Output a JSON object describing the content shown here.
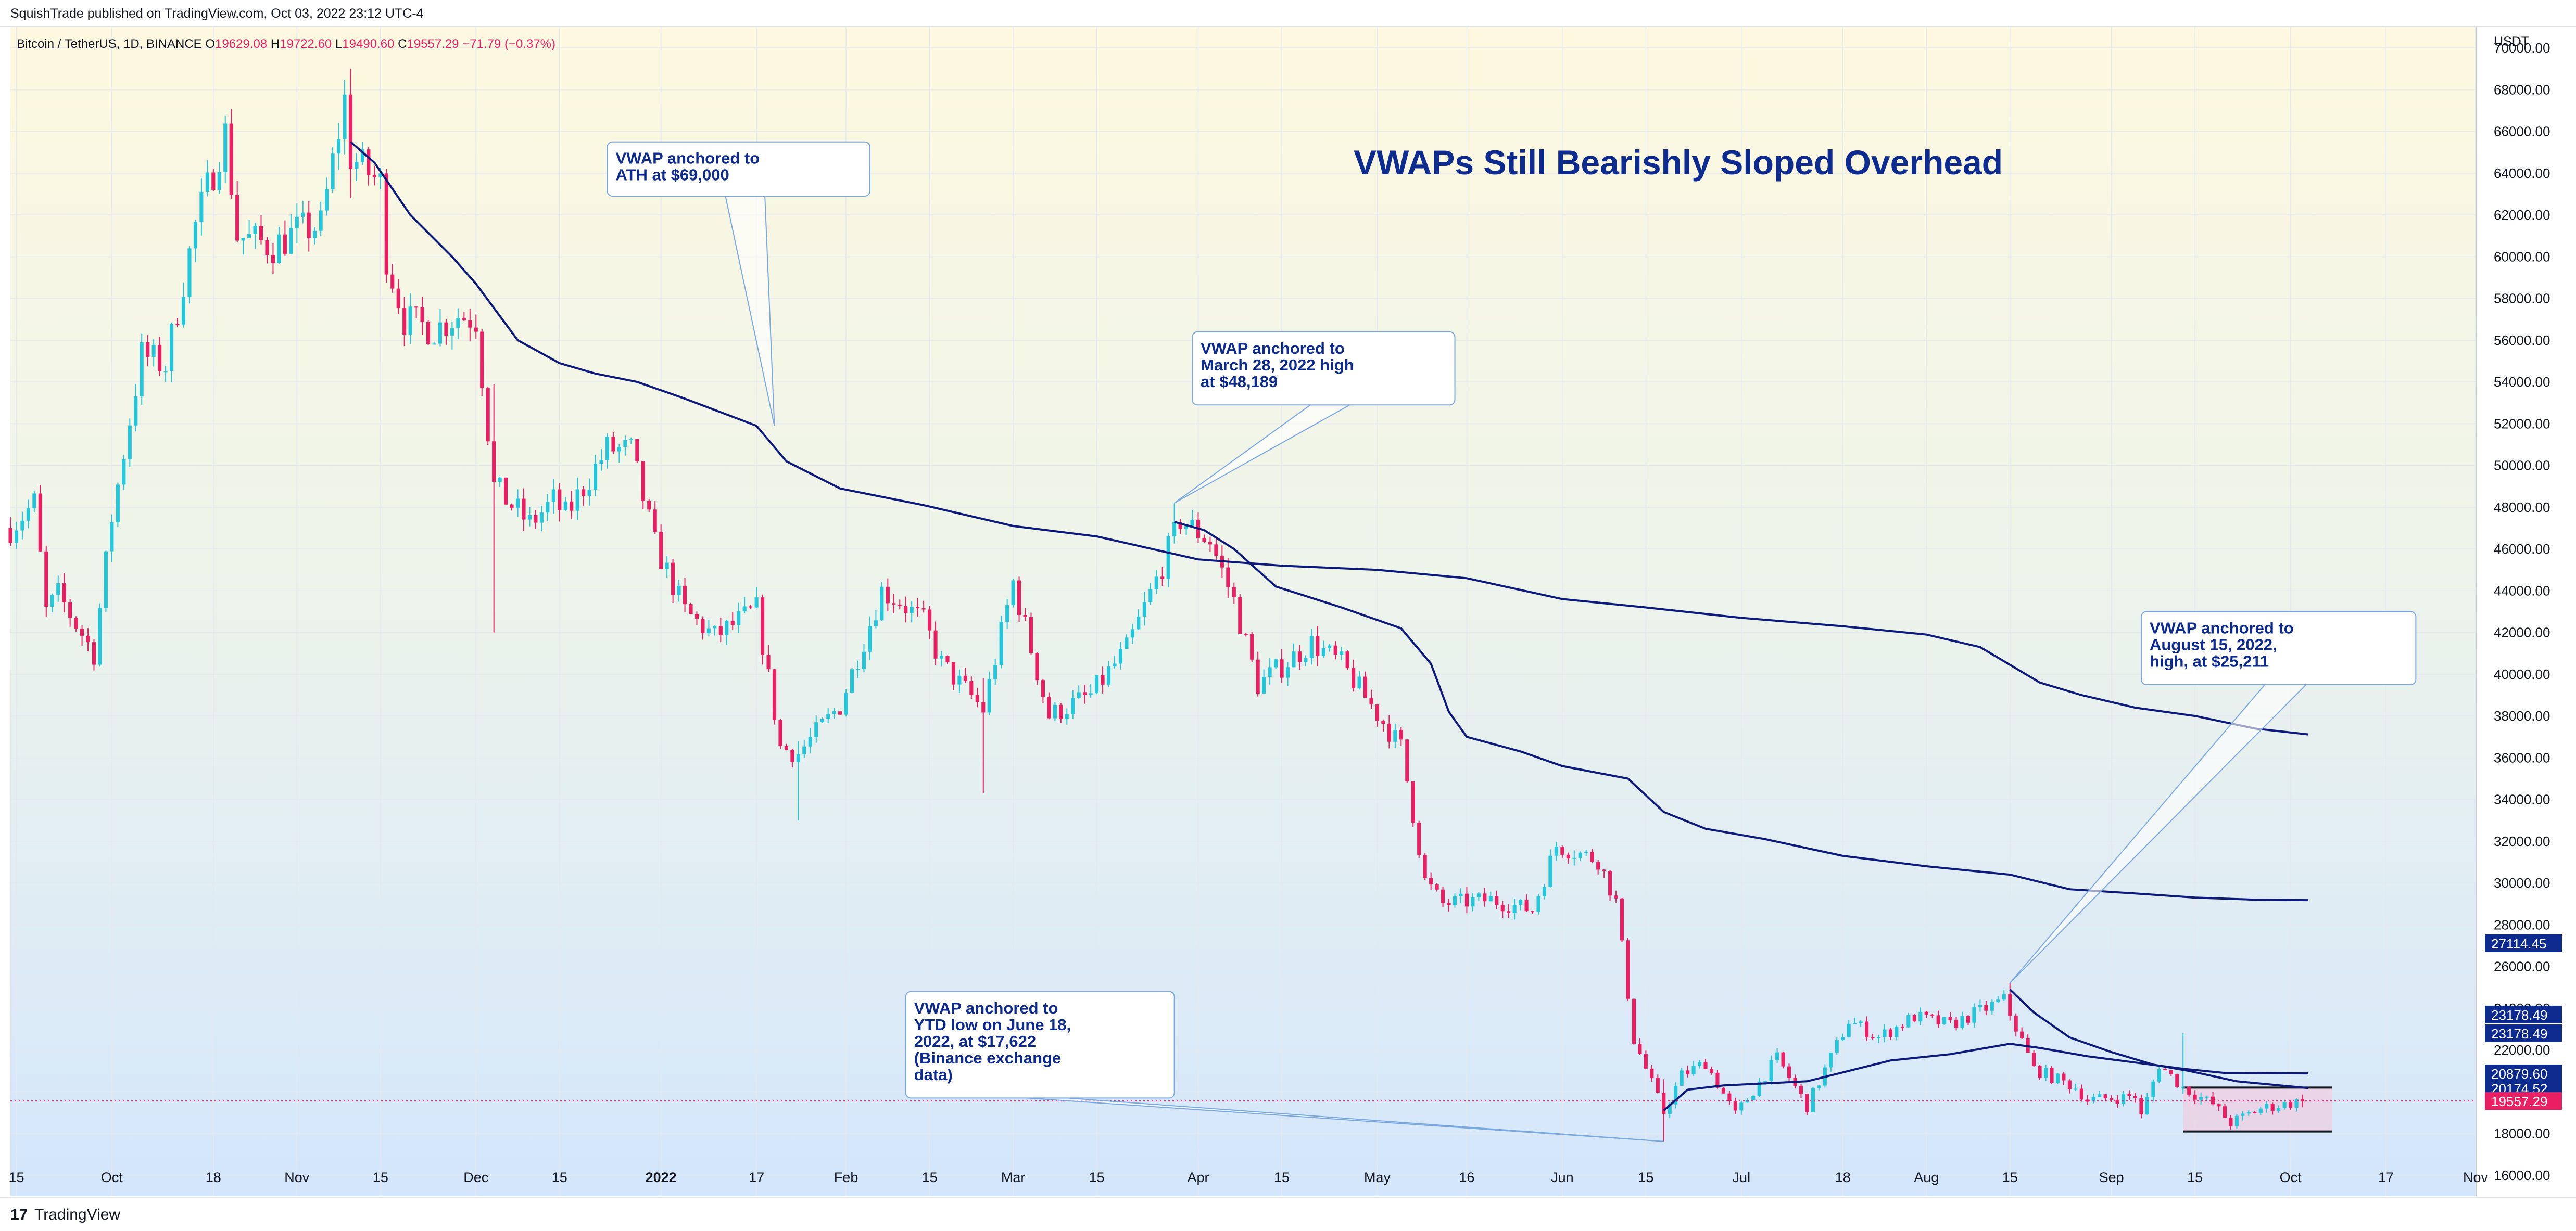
{
  "header": {
    "published": "SquishTrade published on TradingView.com, Oct 03, 2022 23:12 UTC-4"
  },
  "footer": {
    "logo_icon": "tradingview-logo-icon",
    "logo_glyph": "17",
    "brand": "TradingView"
  },
  "colors": {
    "up": "#26c6da",
    "down": "#e91e63",
    "vwap": "#0d1a7a",
    "title": "#0d2a8f",
    "callout_text": "#0d2a8f",
    "callout_border": "#7aa7e0",
    "price_label_bg": "#e91e63",
    "vwap_label_bg": "#0d2a8f",
    "range_box_fill": "#f7c5d8"
  },
  "chart_data": {
    "type": "candlestick",
    "symbol_line": {
      "symbol": "Bitcoin / TetherUS, 1D, BINANCE",
      "open_prefix": "O",
      "open": "19629.08",
      "high_prefix": "H",
      "high": "19722.60",
      "low_prefix": "L",
      "low": "19490.60",
      "close_prefix": "C",
      "close": "19557.29",
      "change": "−71.79 (−0.37%)"
    },
    "title": "VWAPs Still Bearishly Sloped Overhead",
    "y_unit": "USDT",
    "ylim": [
      15000,
      71000
    ],
    "xlim": [
      "2021-09-14",
      "2022-11-01"
    ],
    "y_ticks": [
      "70000.00",
      "68000.00",
      "66000.00",
      "64000.00",
      "62000.00",
      "60000.00",
      "58000.00",
      "56000.00",
      "54000.00",
      "52000.00",
      "50000.00",
      "48000.00",
      "46000.00",
      "44000.00",
      "42000.00",
      "40000.00",
      "38000.00",
      "36000.00",
      "34000.00",
      "32000.00",
      "30000.00",
      "28000.00",
      "26000.00",
      "24000.00",
      "22000.00",
      "20000.00",
      "18000.00",
      "16000.00"
    ],
    "y_tick_values": [
      70000,
      68000,
      66000,
      64000,
      62000,
      60000,
      58000,
      56000,
      54000,
      52000,
      50000,
      48000,
      46000,
      44000,
      42000,
      40000,
      38000,
      36000,
      34000,
      32000,
      30000,
      28000,
      26000,
      24000,
      22000,
      20000,
      18000,
      16000
    ],
    "x_ticks": [
      {
        "label": "15",
        "date": "2021-09-15",
        "bold": false
      },
      {
        "label": "Oct",
        "date": "2021-10-01",
        "bold": false
      },
      {
        "label": "18",
        "date": "2021-10-18",
        "bold": false
      },
      {
        "label": "Nov",
        "date": "2021-11-01",
        "bold": false
      },
      {
        "label": "15",
        "date": "2021-11-15",
        "bold": false
      },
      {
        "label": "Dec",
        "date": "2021-12-01",
        "bold": false
      },
      {
        "label": "15",
        "date": "2021-12-15",
        "bold": false
      },
      {
        "label": "2022",
        "date": "2022-01-01",
        "bold": true
      },
      {
        "label": "17",
        "date": "2022-01-17",
        "bold": false
      },
      {
        "label": "Feb",
        "date": "2022-02-01",
        "bold": false
      },
      {
        "label": "15",
        "date": "2022-02-15",
        "bold": false
      },
      {
        "label": "Mar",
        "date": "2022-03-01",
        "bold": false
      },
      {
        "label": "15",
        "date": "2022-03-15",
        "bold": false
      },
      {
        "label": "Apr",
        "date": "2022-04-01",
        "bold": false
      },
      {
        "label": "15",
        "date": "2022-04-15",
        "bold": false
      },
      {
        "label": "May",
        "date": "2022-05-01",
        "bold": false
      },
      {
        "label": "16",
        "date": "2022-05-16",
        "bold": false
      },
      {
        "label": "Jun",
        "date": "2022-06-01",
        "bold": false
      },
      {
        "label": "15",
        "date": "2022-06-15",
        "bold": false
      },
      {
        "label": "Jul",
        "date": "2022-07-01",
        "bold": false
      },
      {
        "label": "18",
        "date": "2022-07-18",
        "bold": false
      },
      {
        "label": "Aug",
        "date": "2022-08-01",
        "bold": false
      },
      {
        "label": "15",
        "date": "2022-08-15",
        "bold": false
      },
      {
        "label": "Sep",
        "date": "2022-09-01",
        "bold": false
      },
      {
        "label": "15",
        "date": "2022-09-15",
        "bold": false
      },
      {
        "label": "Oct",
        "date": "2022-10-01",
        "bold": false
      },
      {
        "label": "17",
        "date": "2022-10-17",
        "bold": false
      },
      {
        "label": "Nov",
        "date": "2022-11-01",
        "bold": false
      }
    ],
    "price_path": [
      [
        "2021-09-14",
        47000
      ],
      [
        "2021-09-18",
        48200
      ],
      [
        "2021-09-20",
        43000
      ],
      [
        "2021-09-22",
        43800
      ],
      [
        "2021-09-28",
        41000
      ],
      [
        "2021-10-01",
        47500
      ],
      [
        "2021-10-06",
        55300
      ],
      [
        "2021-10-10",
        54800
      ],
      [
        "2021-10-15",
        61500
      ],
      [
        "2021-10-20",
        65900
      ],
      [
        "2021-10-22",
        61000
      ],
      [
        "2021-10-28",
        60500
      ],
      [
        "2021-11-01",
        61200
      ],
      [
        "2021-11-05",
        61500
      ],
      [
        "2021-11-09",
        67500
      ],
      [
        "2021-11-10",
        64800
      ],
      [
        "2021-11-15",
        63500
      ],
      [
        "2021-11-16",
        60000
      ],
      [
        "2021-11-19",
        57000
      ],
      [
        "2021-11-24",
        56500
      ],
      [
        "2021-11-28",
        57200
      ],
      [
        "2021-12-01",
        57000
      ],
      [
        "2021-12-04",
        49000
      ],
      [
        "2021-12-10",
        47200
      ],
      [
        "2021-12-14",
        48300
      ],
      [
        "2021-12-16",
        47600
      ],
      [
        "2021-12-23",
        50800
      ],
      [
        "2021-12-27",
        50700
      ],
      [
        "2021-12-31",
        46200
      ],
      [
        "2022-01-05",
        43000
      ],
      [
        "2022-01-10",
        41800
      ],
      [
        "2022-01-17",
        43100
      ],
      [
        "2022-01-21",
        36500
      ],
      [
        "2022-01-24",
        36200
      ],
      [
        "2022-01-31",
        38500
      ],
      [
        "2022-02-07",
        44000
      ],
      [
        "2022-02-10",
        43500
      ],
      [
        "2022-02-14",
        42500
      ],
      [
        "2022-02-17",
        40500
      ],
      [
        "2022-02-24",
        38300
      ],
      [
        "2022-03-01",
        44400
      ],
      [
        "2022-03-07",
        38000
      ],
      [
        "2022-03-14",
        39000
      ],
      [
        "2022-03-20",
        41200
      ],
      [
        "2022-03-25",
        44500
      ],
      [
        "2022-03-29",
        47400
      ],
      [
        "2022-04-03",
        46400
      ],
      [
        "2022-04-07",
        43500
      ],
      [
        "2022-04-11",
        39500
      ],
      [
        "2022-04-20",
        41500
      ],
      [
        "2022-04-25",
        40500
      ],
      [
        "2022-05-05",
        36500
      ],
      [
        "2022-05-09",
        30100
      ],
      [
        "2022-05-12",
        29000
      ],
      [
        "2022-05-20",
        29200
      ],
      [
        "2022-05-27",
        28700
      ],
      [
        "2022-05-31",
        31800
      ],
      [
        "2022-06-07",
        31100
      ],
      [
        "2022-06-10",
        29100
      ],
      [
        "2022-06-13",
        22500
      ],
      [
        "2022-06-18",
        19000
      ],
      [
        "2022-06-21",
        20800
      ],
      [
        "2022-06-25",
        21400
      ],
      [
        "2022-06-30",
        18900
      ],
      [
        "2022-07-07",
        21600
      ],
      [
        "2022-07-12",
        19300
      ],
      [
        "2022-07-19",
        23400
      ],
      [
        "2022-07-24",
        22600
      ],
      [
        "2022-07-30",
        23600
      ],
      [
        "2022-08-05",
        23200
      ],
      [
        "2022-08-14",
        24400
      ],
      [
        "2022-08-19",
        21100
      ],
      [
        "2022-08-26",
        20200
      ],
      [
        "2022-08-28",
        19600
      ],
      [
        "2022-09-05",
        19800
      ],
      [
        "2022-09-06",
        18800
      ],
      [
        "2022-09-09",
        21300
      ],
      [
        "2022-09-13",
        20200
      ],
      [
        "2022-09-18",
        19400
      ],
      [
        "2022-09-21",
        18500
      ],
      [
        "2022-09-26",
        19200
      ],
      [
        "2022-10-03",
        19557
      ]
    ],
    "spikes": [
      {
        "date": "2021-11-10",
        "high": 69000,
        "low": 62800
      },
      {
        "date": "2021-12-04",
        "high": 53900,
        "low": 42000
      },
      {
        "date": "2022-01-24",
        "high": 36800,
        "low": 33000
      },
      {
        "date": "2022-02-24",
        "high": 39800,
        "low": 34300
      },
      {
        "date": "2022-03-28",
        "high": 48189,
        "low": 46500
      },
      {
        "date": "2022-06-18",
        "high": 20600,
        "low": 17622
      },
      {
        "date": "2022-08-15",
        "high": 25211,
        "low": 24000
      },
      {
        "date": "2022-09-13",
        "high": 22800,
        "low": 19900
      }
    ],
    "series": [
      {
        "name": "VWAP anchored to ATH at $69,000",
        "points": [
          [
            "2021-11-10",
            65500
          ],
          [
            "2021-11-14",
            64500
          ],
          [
            "2021-11-20",
            62000
          ],
          [
            "2021-11-27",
            60000
          ],
          [
            "2021-12-01",
            58700
          ],
          [
            "2021-12-08",
            56000
          ],
          [
            "2021-12-15",
            54900
          ],
          [
            "2021-12-21",
            54400
          ],
          [
            "2021-12-28",
            54000
          ],
          [
            "2022-01-05",
            53200
          ],
          [
            "2022-01-17",
            51900
          ],
          [
            "2022-01-22",
            50200
          ],
          [
            "2022-01-31",
            48900
          ],
          [
            "2022-02-14",
            48100
          ],
          [
            "2022-03-01",
            47100
          ],
          [
            "2022-03-15",
            46600
          ],
          [
            "2022-04-01",
            45500
          ],
          [
            "2022-04-15",
            45200
          ],
          [
            "2022-05-01",
            45000
          ],
          [
            "2022-05-16",
            44600
          ],
          [
            "2022-06-01",
            43600
          ],
          [
            "2022-06-15",
            43200
          ],
          [
            "2022-07-01",
            42700
          ],
          [
            "2022-07-18",
            42300
          ],
          [
            "2022-08-01",
            41900
          ],
          [
            "2022-08-10",
            41300
          ],
          [
            "2022-08-20",
            39600
          ],
          [
            "2022-08-27",
            39000
          ],
          [
            "2022-09-05",
            38400
          ],
          [
            "2022-09-15",
            38000
          ],
          [
            "2022-09-25",
            37400
          ],
          [
            "2022-10-04",
            37115
          ]
        ]
      },
      {
        "name": "VWAP anchored to March 28, 2022 high at $48,189",
        "points": [
          [
            "2022-03-28",
            47300
          ],
          [
            "2022-04-02",
            46900
          ],
          [
            "2022-04-07",
            46000
          ],
          [
            "2022-04-14",
            44200
          ],
          [
            "2022-04-25",
            43200
          ],
          [
            "2022-05-05",
            42200
          ],
          [
            "2022-05-10",
            40500
          ],
          [
            "2022-05-13",
            38200
          ],
          [
            "2022-05-16",
            37000
          ],
          [
            "2022-05-25",
            36300
          ],
          [
            "2022-06-01",
            35600
          ],
          [
            "2022-06-12",
            35000
          ],
          [
            "2022-06-18",
            33400
          ],
          [
            "2022-06-25",
            32600
          ],
          [
            "2022-07-05",
            32100
          ],
          [
            "2022-07-18",
            31300
          ],
          [
            "2022-08-01",
            30800
          ],
          [
            "2022-08-15",
            30400
          ],
          [
            "2022-08-25",
            29700
          ],
          [
            "2022-09-05",
            29500
          ],
          [
            "2022-09-15",
            29300
          ],
          [
            "2022-09-25",
            29200
          ],
          [
            "2022-10-04",
            29178
          ]
        ]
      },
      {
        "name": "VWAP anchored to YTD low on June 18, 2022, at $17,622 (Binance exchange data)",
        "points": [
          [
            "2022-06-18",
            19100
          ],
          [
            "2022-06-22",
            20100
          ],
          [
            "2022-06-28",
            20300
          ],
          [
            "2022-07-05",
            20400
          ],
          [
            "2022-07-12",
            20500
          ],
          [
            "2022-07-19",
            21000
          ],
          [
            "2022-07-26",
            21500
          ],
          [
            "2022-08-05",
            21800
          ],
          [
            "2022-08-15",
            22300
          ],
          [
            "2022-08-20",
            22100
          ],
          [
            "2022-08-28",
            21700
          ],
          [
            "2022-09-05",
            21400
          ],
          [
            "2022-09-13",
            21100
          ],
          [
            "2022-09-20",
            20900
          ],
          [
            "2022-10-04",
            20879
          ]
        ]
      },
      {
        "name": "VWAP anchored to August 15, 2022, high, at $25,211",
        "points": [
          [
            "2022-08-15",
            24900
          ],
          [
            "2022-08-19",
            23800
          ],
          [
            "2022-08-25",
            22600
          ],
          [
            "2022-09-01",
            21900
          ],
          [
            "2022-09-08",
            21300
          ],
          [
            "2022-09-14",
            21000
          ],
          [
            "2022-09-22",
            20500
          ],
          [
            "2022-10-04",
            20175
          ]
        ]
      }
    ],
    "right_labels": [
      {
        "value": "27114.45",
        "y": 27114.45,
        "kind": "vwap"
      },
      {
        "value": "23178.49",
        "y": 23700,
        "kind": "vwap"
      },
      {
        "value": "23178.49",
        "y": 22800,
        "kind": "vwap"
      },
      {
        "value": "20879.60",
        "y": 20879.6,
        "kind": "vwap"
      },
      {
        "value": "20174.52",
        "y": 20174.52,
        "kind": "vwap"
      },
      {
        "value": "19557.29",
        "y": 19557.29,
        "kind": "price"
      }
    ],
    "range_box": {
      "x0": "2022-09-13",
      "x1": "2022-10-08",
      "y0": 18100,
      "y1": 20200
    },
    "callouts": [
      {
        "lines": [
          "VWAP anchored to",
          "ATH at $69,000"
        ],
        "box_date": "2021-12-23",
        "box_price": 65500,
        "box_width_days": 44,
        "box_height_price": 2600,
        "anchor_date": "2022-01-20",
        "anchor_price": 51900
      },
      {
        "lines": [
          "VWAP anchored to",
          "March 28, 2022 high",
          "at $48,189"
        ],
        "box_date": "2022-03-31",
        "box_price": 56400,
        "box_width_days": 44,
        "box_height_price": 3500,
        "anchor_date": "2022-03-28",
        "anchor_price": 48200
      },
      {
        "lines": [
          "VWAP anchored to",
          "August 15, 2022,",
          "high, at $25,211"
        ],
        "box_date": "2022-09-06",
        "box_price": 43000,
        "box_width_days": 46,
        "box_height_price": 3500,
        "anchor_date": "2022-08-15",
        "anchor_price": 25211
      },
      {
        "lines": [
          "VWAP anchored to",
          "YTD low on June 18,",
          "2022, at $17,622",
          "(Binance exchange",
          "data)"
        ],
        "box_date": "2022-02-11",
        "box_price": 24800,
        "box_width_days": 45,
        "box_height_price": 5100,
        "anchor_date": "2022-06-18",
        "anchor_price": 17622
      }
    ]
  }
}
